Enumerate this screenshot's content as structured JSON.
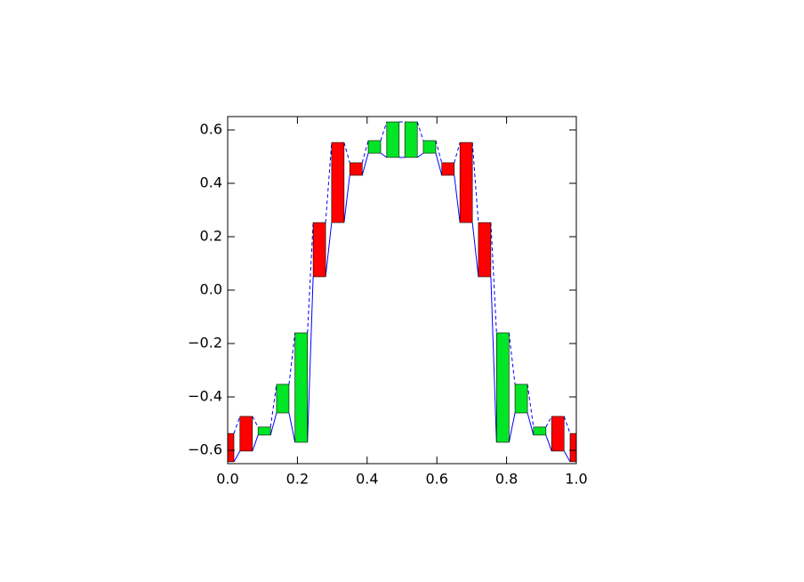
{
  "chart_data": {
    "type": "candlestick",
    "x": [
      0,
      0.053,
      0.105,
      0.158,
      0.211,
      0.263,
      0.316,
      0.368,
      0.421,
      0.474,
      0.526,
      0.579,
      0.632,
      0.684,
      0.737,
      0.789,
      0.842,
      0.895,
      0.947,
      1
    ],
    "open": [
      -0.537,
      -0.473,
      -0.543,
      -0.46,
      -0.57,
      0.253,
      0.553,
      0.477,
      0.513,
      0.497,
      0.497,
      0.513,
      0.477,
      0.553,
      0.253,
      -0.57,
      -0.46,
      -0.543,
      -0.473,
      -0.537
    ],
    "close": [
      -0.643,
      -0.603,
      -0.513,
      -0.353,
      -0.16,
      0.05,
      0.253,
      0.43,
      0.56,
      0.63,
      0.63,
      0.56,
      0.43,
      0.253,
      0.05,
      -0.16,
      -0.353,
      -0.513,
      -0.603,
      -0.643
    ],
    "up_color": "#00e626",
    "down_color": "#ff0000",
    "line_color": "#0000ff",
    "xlim": [
      0,
      1
    ],
    "ylim": [
      -0.65,
      0.65
    ],
    "xticks": [
      {
        "value": 0,
        "label": "0.0"
      },
      0.2,
      0.4,
      0.6,
      0.8,
      {
        "value": 1,
        "label": "1.0"
      }
    ],
    "yticks": [
      {
        "value": -0.6,
        "label": "−0.6"
      },
      {
        "value": -0.4,
        "label": "−0.4"
      },
      {
        "value": -0.2,
        "label": "−0.2"
      },
      {
        "value": 0,
        "label": "0.0"
      },
      0.2,
      0.4,
      0.6
    ]
  }
}
